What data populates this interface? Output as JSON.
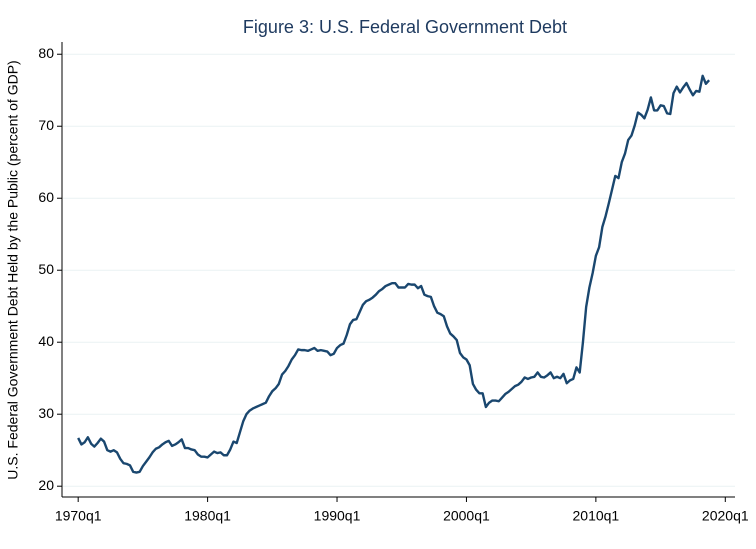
{
  "chart_data": {
    "type": "line",
    "title": "Figure 3: U.S. Federal Government Debt",
    "y_label": "U.S. Federal Government Debt Held by the Public (percent of GDP)",
    "x": [
      "1970q1",
      "1970q2",
      "1970q3",
      "1970q4",
      "1971q1",
      "1971q2",
      "1971q3",
      "1971q4",
      "1972q1",
      "1972q2",
      "1972q3",
      "1972q4",
      "1973q1",
      "1973q2",
      "1973q3",
      "1973q4",
      "1974q1",
      "1974q2",
      "1974q3",
      "1974q4",
      "1975q1",
      "1975q2",
      "1975q3",
      "1975q4",
      "1976q1",
      "1976q2",
      "1976q3",
      "1976q4",
      "1977q1",
      "1977q2",
      "1977q3",
      "1977q4",
      "1978q1",
      "1978q2",
      "1978q3",
      "1978q4",
      "1979q1",
      "1979q2",
      "1979q3",
      "1979q4",
      "1980q1",
      "1980q2",
      "1980q3",
      "1980q4",
      "1981q1",
      "1981q2",
      "1981q3",
      "1981q4",
      "1982q1",
      "1982q2",
      "1982q3",
      "1982q4",
      "1983q1",
      "1983q2",
      "1983q3",
      "1983q4",
      "1984q1",
      "1984q2",
      "1984q3",
      "1984q4",
      "1985q1",
      "1985q2",
      "1985q3",
      "1985q4",
      "1986q1",
      "1986q2",
      "1986q3",
      "1986q4",
      "1987q1",
      "1987q2",
      "1987q3",
      "1987q4",
      "1988q1",
      "1988q2",
      "1988q3",
      "1988q4",
      "1989q1",
      "1989q2",
      "1989q3",
      "1989q4",
      "1990q1",
      "1990q2",
      "1990q3",
      "1990q4",
      "1991q1",
      "1991q2",
      "1991q3",
      "1991q4",
      "1992q1",
      "1992q2",
      "1992q3",
      "1992q4",
      "1993q1",
      "1993q2",
      "1993q3",
      "1993q4",
      "1994q1",
      "1994q2",
      "1994q3",
      "1994q4",
      "1995q1",
      "1995q2",
      "1995q3",
      "1995q4",
      "1996q1",
      "1996q2",
      "1996q3",
      "1996q4",
      "1997q1",
      "1997q2",
      "1997q3",
      "1997q4",
      "1998q1",
      "1998q2",
      "1998q3",
      "1998q4",
      "1999q1",
      "1999q2",
      "1999q3",
      "1999q4",
      "2000q1",
      "2000q2",
      "2000q3",
      "2000q4",
      "2001q1",
      "2001q2",
      "2001q3",
      "2001q4",
      "2002q1",
      "2002q2",
      "2002q3",
      "2002q4",
      "2003q1",
      "2003q2",
      "2003q3",
      "2003q4",
      "2004q1",
      "2004q2",
      "2004q3",
      "2004q4",
      "2005q1",
      "2005q2",
      "2005q3",
      "2005q4",
      "2006q1",
      "2006q2",
      "2006q3",
      "2006q4",
      "2007q1",
      "2007q2",
      "2007q3",
      "2007q4",
      "2008q1",
      "2008q2",
      "2008q3",
      "2008q4",
      "2009q1",
      "2009q2",
      "2009q3",
      "2009q4",
      "2010q1",
      "2010q2",
      "2010q3",
      "2010q4",
      "2011q1",
      "2011q2",
      "2011q3",
      "2011q4",
      "2012q1",
      "2012q2",
      "2012q3",
      "2012q4",
      "2013q1",
      "2013q2",
      "2013q3",
      "2013q4",
      "2014q1",
      "2014q2",
      "2014q3",
      "2014q4",
      "2015q1",
      "2015q2",
      "2015q3",
      "2015q4",
      "2016q1",
      "2016q2",
      "2016q3",
      "2016q4",
      "2017q1",
      "2017q2",
      "2017q3",
      "2017q4",
      "2018q1",
      "2018q2",
      "2018q3",
      "2018q4"
    ],
    "series": [
      {
        "name": "Debt",
        "color": "#1a476f",
        "values": [
          26.7,
          25.8,
          26.1,
          26.8,
          25.9,
          25.5,
          26.0,
          26.6,
          26.2,
          25.0,
          24.8,
          25.0,
          24.7,
          23.8,
          23.2,
          23.1,
          22.9,
          22.0,
          21.9,
          22.0,
          22.8,
          23.4,
          24.0,
          24.7,
          25.2,
          25.4,
          25.8,
          26.1,
          26.3,
          25.6,
          25.8,
          26.1,
          26.5,
          25.3,
          25.3,
          25.1,
          25.0,
          24.4,
          24.1,
          24.1,
          24.0,
          24.4,
          24.8,
          24.6,
          24.7,
          24.3,
          24.3,
          25.1,
          26.2,
          26.0,
          27.5,
          29.0,
          30.0,
          30.5,
          30.8,
          31.0,
          31.2,
          31.4,
          31.6,
          32.5,
          33.2,
          33.6,
          34.2,
          35.5,
          36.0,
          36.7,
          37.6,
          38.2,
          39.0,
          38.9,
          38.9,
          38.8,
          39.0,
          39.2,
          38.8,
          38.9,
          38.8,
          38.7,
          38.2,
          38.4,
          39.2,
          39.6,
          39.8,
          41.0,
          42.5,
          43.1,
          43.2,
          44.2,
          45.2,
          45.7,
          45.9,
          46.2,
          46.6,
          47.1,
          47.4,
          47.8,
          48.0,
          48.2,
          48.2,
          47.6,
          47.6,
          47.6,
          48.1,
          48.0,
          48.0,
          47.5,
          47.8,
          46.6,
          46.4,
          46.3,
          45.0,
          44.1,
          43.9,
          43.6,
          42.2,
          41.2,
          40.8,
          40.3,
          38.5,
          37.9,
          37.6,
          36.8,
          34.2,
          33.4,
          32.9,
          32.9,
          31.0,
          31.6,
          31.9,
          31.9,
          31.8,
          32.3,
          32.8,
          33.1,
          33.5,
          33.9,
          34.1,
          34.5,
          35.1,
          34.9,
          35.1,
          35.2,
          35.8,
          35.2,
          35.1,
          35.4,
          35.8,
          35.0,
          35.2,
          35.0,
          35.6,
          34.3,
          34.7,
          34.9,
          36.5,
          35.8,
          40.0,
          44.9,
          47.6,
          49.6,
          52.0,
          53.2,
          56.0,
          57.5,
          59.3,
          61.2,
          63.1,
          62.8,
          65.0,
          66.2,
          68.1,
          68.7,
          70.1,
          71.9,
          71.6,
          71.1,
          72.3,
          74.0,
          72.2,
          72.2,
          72.9,
          72.8,
          71.8,
          71.7,
          74.6,
          75.5,
          74.7,
          75.4,
          76.0,
          75.1,
          74.3,
          74.9,
          74.8,
          77.0,
          75.9,
          76.4
        ]
      }
    ],
    "xlim": [
      "1968q4",
      "2020q4"
    ],
    "xticks": [
      "1970q1",
      "1980q1",
      "1990q1",
      "2000q1",
      "2010q1",
      "2020q1"
    ],
    "ylim": [
      18.5,
      81.7
    ],
    "yticks": [
      20,
      30,
      40,
      50,
      60,
      70,
      80
    ],
    "grid": true
  }
}
